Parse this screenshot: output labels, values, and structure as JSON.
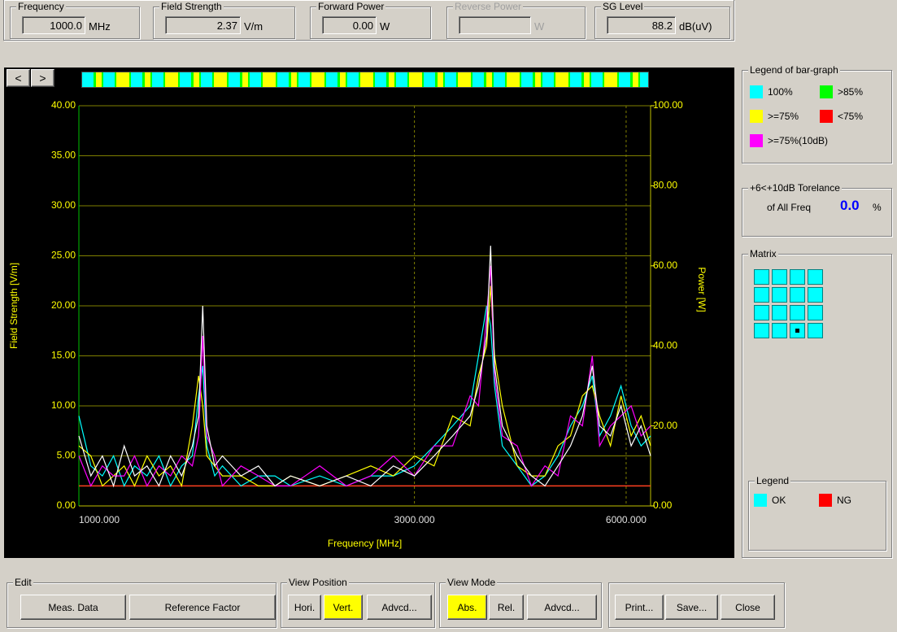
{
  "readouts": [
    {
      "label": "Frequency",
      "value": "1000.0",
      "unit": "MHz"
    },
    {
      "label": "Field Strength",
      "value": "2.37",
      "unit": "V/m"
    },
    {
      "label": "Forward Power",
      "value": "0.00",
      "unit": "W"
    },
    {
      "label": "Reverse Power",
      "value": null,
      "unit": "W",
      "disabled": true
    },
    {
      "label": "SG Level",
      "value": "88.2",
      "unit": "dB(uV)"
    }
  ],
  "nav_buttons": [
    "<",
    ">"
  ],
  "chart_data": {
    "type": "line",
    "x_label": "Frequency [MHz]",
    "y_label": "Field Strength [V/m]",
    "y2_label": "Power [W]",
    "xscale": "log",
    "xlim": [
      1000,
      6500
    ],
    "xticks": [
      {
        "value": 1000,
        "label": "1000.000"
      },
      {
        "value": 3000,
        "label": "3000.000"
      },
      {
        "value": 6000,
        "label": "6000.000"
      }
    ],
    "ylim": [
      0,
      40
    ],
    "yticks": [
      {
        "value": 0,
        "label": "0.00"
      },
      {
        "value": 5,
        "label": "5.00"
      },
      {
        "value": 10,
        "label": "10.00"
      },
      {
        "value": 15,
        "label": "15.00"
      },
      {
        "value": 20,
        "label": "20.00"
      },
      {
        "value": 25,
        "label": "25.00"
      },
      {
        "value": 30,
        "label": "30.00"
      },
      {
        "value": 35,
        "label": "35.00"
      },
      {
        "value": 40,
        "label": "40.00"
      }
    ],
    "y2lim": [
      0,
      100
    ],
    "y2ticks": [
      {
        "value": 0,
        "label": "0.00"
      },
      {
        "value": 20,
        "label": "20.00"
      },
      {
        "value": 40,
        "label": "40.00"
      },
      {
        "value": 60,
        "label": "60.00"
      },
      {
        "value": 80,
        "label": "80.00"
      },
      {
        "value": 100,
        "label": "100.00"
      }
    ],
    "grid": true,
    "x": [
      1000,
      1040,
      1080,
      1120,
      1160,
      1200,
      1250,
      1300,
      1350,
      1400,
      1450,
      1480,
      1500,
      1520,
      1560,
      1600,
      1700,
      1800,
      1900,
      2000,
      2200,
      2400,
      2600,
      2800,
      3000,
      3200,
      3400,
      3600,
      3700,
      3800,
      3850,
      3900,
      4000,
      4200,
      4400,
      4600,
      4800,
      5000,
      5200,
      5370,
      5500,
      5700,
      5900,
      6100,
      6300,
      6500
    ],
    "series": [
      {
        "color": "#00ffff",
        "values": [
          9,
          4,
          3,
          5,
          2,
          4,
          3,
          5,
          2,
          4,
          5,
          11,
          14,
          6,
          3,
          4,
          2,
          3,
          3,
          2,
          3,
          2,
          3,
          3,
          4,
          6,
          8,
          10,
          15,
          20,
          18,
          12,
          6,
          4,
          2,
          3,
          5,
          8,
          10,
          13,
          7,
          9,
          12,
          8,
          6,
          7
        ]
      },
      {
        "color": "#ffff00",
        "values": [
          6,
          5,
          2,
          3,
          4,
          2,
          5,
          3,
          4,
          2,
          8,
          13,
          10,
          5,
          4,
          3,
          3,
          2,
          2,
          3,
          2,
          3,
          4,
          3,
          5,
          4,
          9,
          8,
          13,
          16,
          22,
          15,
          10,
          4,
          3,
          3,
          6,
          7,
          11,
          12,
          9,
          6,
          11,
          7,
          9,
          6
        ]
      },
      {
        "color": "#ff00ff",
        "values": [
          5,
          2,
          4,
          3,
          3,
          5,
          2,
          4,
          3,
          5,
          4,
          7,
          17,
          7,
          5,
          2,
          4,
          3,
          2,
          2,
          4,
          2,
          3,
          5,
          3,
          6,
          6,
          11,
          10,
          19,
          24,
          13,
          7,
          6,
          2,
          4,
          3,
          9,
          8,
          15,
          6,
          8,
          9,
          10,
          7,
          8
        ]
      },
      {
        "color": "#ffffff",
        "values": [
          7,
          3,
          5,
          2,
          6,
          3,
          4,
          2,
          5,
          3,
          6,
          9,
          20,
          8,
          4,
          5,
          3,
          4,
          2,
          3,
          2,
          3,
          2,
          4,
          3,
          5,
          7,
          9,
          12,
          17,
          26,
          14,
          8,
          5,
          3,
          2,
          4,
          6,
          9,
          14,
          8,
          7,
          10,
          6,
          8,
          5
        ]
      }
    ],
    "limit_line": {
      "value": 2,
      "color": "#ff4020"
    }
  },
  "bar_graph_legend": {
    "title": "Legend of bar-graph",
    "items": [
      {
        "label": "100%",
        "color": "#00ffff"
      },
      {
        "label": ">85%",
        "color": "#00ff00"
      },
      {
        "label": ">=75%",
        "color": "#ffff00"
      },
      {
        "label": "<75%",
        "color": "#ff0000"
      },
      {
        "label": ">=75%(10dB)",
        "color": "#ff00ff"
      }
    ]
  },
  "tolerance": {
    "title": "+6<+10dB Torelance",
    "label": "of All Freq",
    "value": "0.0",
    "unit": "%"
  },
  "matrix": {
    "title": "Matrix"
  },
  "legend": {
    "title": "Legend",
    "items": [
      {
        "label": "OK",
        "color": "#00ffff"
      },
      {
        "label": "NG",
        "color": "#ff0000"
      }
    ]
  },
  "toolbar": {
    "groups": [
      {
        "title": "Edit",
        "buttons": [
          "Meas. Data",
          "Reference Factor"
        ]
      },
      {
        "title": "View Position",
        "buttons": [
          "Hori.",
          "Vert.",
          "Advcd..."
        ],
        "active": 1
      },
      {
        "title": "View Mode",
        "buttons": [
          "Abs.",
          "Rel.",
          "Advcd..."
        ],
        "active": 0
      }
    ],
    "output_buttons": [
      "Print...",
      "Save...",
      "Close"
    ]
  }
}
